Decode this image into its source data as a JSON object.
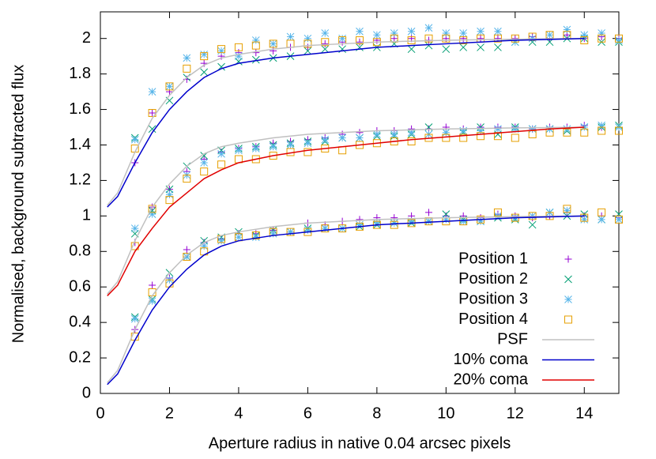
{
  "chart_data": {
    "type": "scatter",
    "x_label": "Aperture radius in native 0.04 arcsec pixels",
    "y_label": "Normalised, background subtracted flux",
    "xlim": [
      0,
      15
    ],
    "ylim": [
      0,
      2.15
    ],
    "xticks": [
      0,
      2,
      4,
      6,
      8,
      10,
      12,
      14
    ],
    "yticks": [
      0,
      0.2,
      0.4,
      0.6,
      0.8,
      1,
      1.2,
      1.4,
      1.6,
      1.8,
      2
    ],
    "legend": "bottom right",
    "series": [
      {
        "name": "Position 1",
        "color": "#9400d3",
        "marker": "plus",
        "x": [
          1,
          1.5,
          2,
          2.5,
          3,
          3.5,
          4,
          4.5,
          5,
          5.5,
          6,
          6.5,
          7,
          7.5,
          8,
          8.5,
          9,
          9.5,
          10,
          10.5,
          11,
          11.5,
          12,
          12.5,
          13,
          13.5,
          14,
          14.5,
          15,
          1,
          1.5,
          2,
          2.5,
          3,
          3.5,
          4,
          4.5,
          5,
          5.5,
          6,
          6.5,
          7,
          7.5,
          8,
          8.5,
          9,
          9.5,
          10,
          10.5,
          11,
          11.5,
          12,
          12.5,
          13,
          13.5,
          14,
          14.5,
          15,
          1,
          1.5,
          2,
          2.5,
          3,
          3.5,
          4,
          4.5,
          5,
          5.5,
          6,
          6.5,
          7,
          7.5,
          8,
          8.5,
          9,
          9.5,
          10,
          10.5,
          11,
          11.5,
          12,
          12.5,
          13,
          13.5,
          14,
          14.5,
          15
        ],
        "values": [
          0.36,
          0.61,
          0.65,
          0.81,
          0.85,
          0.87,
          0.9,
          0.9,
          0.92,
          0.91,
          0.96,
          0.95,
          0.97,
          0.98,
          0.99,
          0.99,
          1.0,
          1.02,
          1.0,
          1.0,
          0.99,
          1.01,
          1.0,
          0.99,
          1.0,
          1.02,
          1.0,
          1.0,
          0.99,
          0.85,
          1.05,
          1.15,
          1.25,
          1.32,
          1.36,
          1.38,
          1.39,
          1.41,
          1.42,
          1.43,
          1.44,
          1.46,
          1.47,
          1.48,
          1.48,
          1.49,
          1.49,
          1.5,
          1.49,
          1.5,
          1.5,
          1.5,
          1.49,
          1.5,
          1.5,
          1.51,
          1.5,
          1.5,
          1.3,
          1.58,
          1.7,
          1.77,
          1.86,
          1.9,
          1.92,
          1.92,
          1.93,
          1.95,
          1.95,
          1.97,
          1.98,
          1.98,
          1.99,
          2.0,
          2.0,
          1.99,
          2.0,
          2.0,
          2.0,
          2.0,
          2.0,
          2.01,
          2.0,
          2.02,
          2.0,
          2.01,
          2.0
        ]
      },
      {
        "name": "Position 2",
        "color": "#009e73",
        "marker": "cross",
        "x": [
          1,
          1.5,
          2,
          2.5,
          3,
          3.5,
          4,
          4.5,
          5,
          5.5,
          6,
          6.5,
          7,
          7.5,
          8,
          8.5,
          9,
          9.5,
          10,
          10.5,
          11,
          11.5,
          12,
          12.5,
          13,
          13.5,
          14,
          14.5,
          15,
          1,
          1.5,
          2,
          2.5,
          3,
          3.5,
          4,
          4.5,
          5,
          5.5,
          6,
          6.5,
          7,
          7.5,
          8,
          8.5,
          9,
          9.5,
          10,
          10.5,
          11,
          11.5,
          12,
          12.5,
          13,
          13.5,
          14,
          14.5,
          15,
          1,
          1.5,
          2,
          2.5,
          3,
          3.5,
          4,
          4.5,
          5,
          5.5,
          6,
          6.5,
          7,
          7.5,
          8,
          8.5,
          9,
          9.5,
          10,
          10.5,
          11,
          11.5,
          12,
          12.5,
          13,
          13.5,
          14,
          14.5,
          15
        ],
        "values": [
          0.43,
          0.53,
          0.68,
          0.77,
          0.86,
          0.88,
          0.91,
          0.89,
          0.92,
          0.91,
          0.93,
          0.93,
          0.93,
          0.94,
          0.95,
          0.96,
          0.96,
          0.97,
          1.01,
          0.98,
          0.97,
          0.99,
          0.98,
          0.95,
          1.02,
          1.0,
          1.01,
          0.98,
          1.01,
          0.9,
          1.03,
          1.15,
          1.28,
          1.34,
          1.37,
          1.38,
          1.39,
          1.4,
          1.41,
          1.42,
          1.42,
          1.44,
          1.44,
          1.45,
          1.45,
          1.46,
          1.5,
          1.47,
          1.47,
          1.5,
          1.46,
          1.5,
          1.49,
          1.49,
          1.48,
          1.5,
          1.5,
          1.51,
          1.44,
          1.49,
          1.65,
          1.78,
          1.81,
          1.84,
          1.87,
          1.88,
          1.89,
          1.9,
          1.93,
          1.94,
          1.94,
          1.95,
          1.95,
          1.97,
          1.94,
          1.96,
          1.94,
          1.95,
          1.95,
          1.95,
          1.98,
          1.98,
          1.98,
          2.0,
          2.0,
          1.98,
          1.98
        ]
      },
      {
        "name": "Position 3",
        "color": "#56b4e9",
        "marker": "star",
        "x": [
          1,
          1.5,
          2,
          2.5,
          3,
          3.5,
          4,
          4.5,
          5,
          5.5,
          6,
          6.5,
          7,
          7.5,
          8,
          8.5,
          9,
          9.5,
          10,
          10.5,
          11,
          11.5,
          12,
          12.5,
          13,
          13.5,
          14,
          14.5,
          15,
          1,
          1.5,
          2,
          2.5,
          3,
          3.5,
          4,
          4.5,
          5,
          5.5,
          6,
          6.5,
          7,
          7.5,
          8,
          8.5,
          9,
          9.5,
          10,
          10.5,
          11,
          11.5,
          12,
          12.5,
          13,
          13.5,
          14,
          14.5,
          15,
          1,
          1.5,
          2,
          2.5,
          3,
          3.5,
          4,
          4.5,
          5,
          5.5,
          6,
          6.5,
          7,
          7.5,
          8,
          8.5,
          9,
          9.5,
          10,
          10.5,
          11,
          11.5,
          12,
          12.5,
          13,
          13.5,
          14,
          14.5,
          15
        ],
        "values": [
          0.42,
          0.52,
          0.64,
          0.77,
          0.83,
          0.86,
          0.88,
          0.88,
          0.9,
          0.91,
          0.92,
          0.93,
          0.93,
          0.95,
          0.96,
          0.96,
          0.97,
          0.97,
          0.98,
          0.97,
          0.97,
          1.0,
          0.99,
          1.0,
          1.02,
          1.03,
          0.98,
          0.98,
          0.98,
          0.93,
          1.01,
          1.12,
          1.23,
          1.3,
          1.35,
          1.37,
          1.38,
          1.39,
          1.4,
          1.41,
          1.43,
          1.44,
          1.44,
          1.46,
          1.46,
          1.47,
          1.46,
          1.47,
          1.48,
          1.48,
          1.49,
          1.49,
          1.49,
          1.49,
          1.49,
          1.5,
          1.51,
          1.5,
          1.43,
          1.7,
          1.73,
          1.89,
          1.91,
          1.93,
          1.9,
          1.99,
          1.97,
          2.01,
          2.0,
          2.03,
          2.0,
          2.04,
          2.02,
          2.03,
          2.04,
          2.06,
          2.03,
          2.03,
          2.04,
          2.04,
          1.98,
          2.0,
          2.02,
          2.05,
          2.02,
          2.03,
          1.99
        ]
      },
      {
        "name": "Position 4",
        "color": "#e69f00",
        "marker": "square",
        "x": [
          1,
          1.5,
          2,
          2.5,
          3,
          3.5,
          4,
          4.5,
          5,
          5.5,
          6,
          6.5,
          7,
          7.5,
          8,
          8.5,
          9,
          9.5,
          10,
          10.5,
          11,
          11.5,
          12,
          12.5,
          13,
          13.5,
          14,
          14.5,
          15,
          1,
          1.5,
          2,
          2.5,
          3,
          3.5,
          4,
          4.5,
          5,
          5.5,
          6,
          6.5,
          7,
          7.5,
          8,
          8.5,
          9,
          9.5,
          10,
          10.5,
          11,
          11.5,
          12,
          12.5,
          13,
          13.5,
          14,
          14.5,
          15,
          1,
          1.5,
          2,
          2.5,
          3,
          3.5,
          4,
          4.5,
          5,
          5.5,
          6,
          6.5,
          7,
          7.5,
          8,
          8.5,
          9,
          9.5,
          10,
          10.5,
          11,
          11.5,
          12,
          12.5,
          13,
          13.5,
          14,
          14.5,
          15
        ],
        "values": [
          0.32,
          0.57,
          0.62,
          0.77,
          0.8,
          0.87,
          0.88,
          0.89,
          0.91,
          0.91,
          0.91,
          0.93,
          0.93,
          0.94,
          0.95,
          0.95,
          0.96,
          0.97,
          0.97,
          0.97,
          0.98,
          1.02,
          0.99,
          1.0,
          1.0,
          1.04,
          0.99,
          1.02,
          0.98,
          0.83,
          1.04,
          1.09,
          1.21,
          1.25,
          1.29,
          1.32,
          1.32,
          1.34,
          1.36,
          1.36,
          1.38,
          1.37,
          1.4,
          1.41,
          1.42,
          1.42,
          1.44,
          1.44,
          1.44,
          1.45,
          1.45,
          1.44,
          1.46,
          1.47,
          1.47,
          1.47,
          1.48,
          1.48,
          1.38,
          1.58,
          1.73,
          1.83,
          1.9,
          1.94,
          1.95,
          1.96,
          1.97,
          1.97,
          1.97,
          1.98,
          1.99,
          1.99,
          1.98,
          2.0,
          1.99,
          2.0,
          2.0,
          1.99,
          2.0,
          2.0,
          2.0,
          2.01,
          2.02,
          2.02,
          1.99,
          2.0,
          2.0
        ]
      },
      {
        "name": "PSF",
        "color": "#c0c0c0",
        "marker": "line",
        "x": [
          0.2,
          0.5,
          1,
          1.5,
          2,
          2.5,
          3,
          3.5,
          4,
          5,
          6,
          7,
          8,
          9,
          10,
          11,
          12,
          13,
          14,
          null,
          0.2,
          0.5,
          1,
          1.5,
          2,
          2.5,
          3,
          3.5,
          4,
          5,
          6,
          7,
          8,
          9,
          10,
          11,
          12,
          13,
          14,
          null,
          0.2,
          0.5,
          1,
          1.5,
          2,
          2.5,
          3,
          3.5,
          4,
          5,
          6,
          7,
          8,
          9,
          10,
          11,
          12,
          13,
          14
        ],
        "values": [
          0.06,
          0.13,
          0.36,
          0.55,
          0.68,
          0.78,
          0.85,
          0.89,
          0.91,
          0.94,
          0.96,
          0.97,
          0.98,
          0.985,
          0.99,
          0.993,
          0.996,
          0.998,
          1.0,
          null,
          0.56,
          0.63,
          0.86,
          1.05,
          1.18,
          1.28,
          1.35,
          1.39,
          1.41,
          1.44,
          1.46,
          1.47,
          1.48,
          1.485,
          1.49,
          1.493,
          1.496,
          1.498,
          1.5,
          null,
          1.06,
          1.13,
          1.36,
          1.55,
          1.68,
          1.78,
          1.85,
          1.89,
          1.91,
          1.94,
          1.96,
          1.97,
          1.98,
          1.985,
          1.99,
          1.993,
          1.996,
          1.998,
          2.0
        ]
      },
      {
        "name": "10% coma",
        "color": "#0000cc",
        "marker": "line",
        "x": [
          0.2,
          0.5,
          1,
          1.5,
          2,
          2.5,
          3,
          3.5,
          4,
          5,
          6,
          7,
          8,
          9,
          10,
          11,
          12,
          13,
          14,
          null,
          0.2,
          0.5,
          1,
          1.5,
          2,
          2.5,
          3,
          3.5,
          4,
          5,
          6,
          7,
          8,
          9,
          10,
          11,
          12,
          13,
          14
        ],
        "values": [
          0.05,
          0.11,
          0.3,
          0.47,
          0.6,
          0.7,
          0.78,
          0.83,
          0.86,
          0.89,
          0.91,
          0.93,
          0.95,
          0.96,
          0.97,
          0.98,
          0.99,
          0.995,
          1.0,
          null,
          1.05,
          1.11,
          1.3,
          1.47,
          1.6,
          1.7,
          1.78,
          1.83,
          1.86,
          1.89,
          1.91,
          1.93,
          1.95,
          1.96,
          1.97,
          1.98,
          1.99,
          1.995,
          2.0
        ]
      },
      {
        "name": "20% coma",
        "color": "#e00000",
        "marker": "line",
        "x": [
          0.2,
          0.5,
          1,
          1.5,
          2,
          2.5,
          3,
          3.5,
          4,
          5,
          6,
          7,
          8,
          9,
          10,
          11,
          12,
          13,
          14
        ],
        "values": [
          0.55,
          0.61,
          0.8,
          0.93,
          1.05,
          1.13,
          1.21,
          1.26,
          1.3,
          1.34,
          1.37,
          1.39,
          1.41,
          1.43,
          1.445,
          1.46,
          1.475,
          1.49,
          1.5
        ]
      }
    ]
  }
}
